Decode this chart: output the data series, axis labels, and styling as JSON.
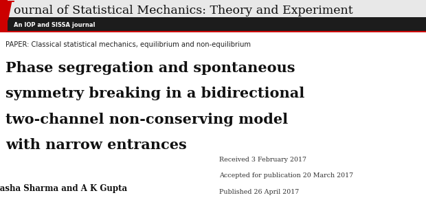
{
  "bg_color": "#ffffff",
  "header_bg": "#1c1c1c",
  "red_J_color": "#cc0000",
  "journal_J": "J",
  "journal_title": "ournal of Statistical Mechanics: Theory and Experiment",
  "subheader_text": "An IOP and SISSA journal",
  "paper_label": "PAPER: Classical statistical mechanics, equilibrium and non-equilibrium",
  "main_title_line1": "Phase segregation and spontaneous",
  "main_title_line2": "symmetry breaking in a bidirectional",
  "main_title_line3": "two-channel non-conserving model",
  "main_title_line4": "with narrow entrances",
  "authors": "Natasha Sharma and A K Gupta",
  "received": "Received 3 February 2017",
  "accepted": "Accepted for publication 20 March 2017",
  "published": "Published 26 April 2017",
  "fig_width": 6.2,
  "fig_height": 3.1,
  "dpi": 100
}
